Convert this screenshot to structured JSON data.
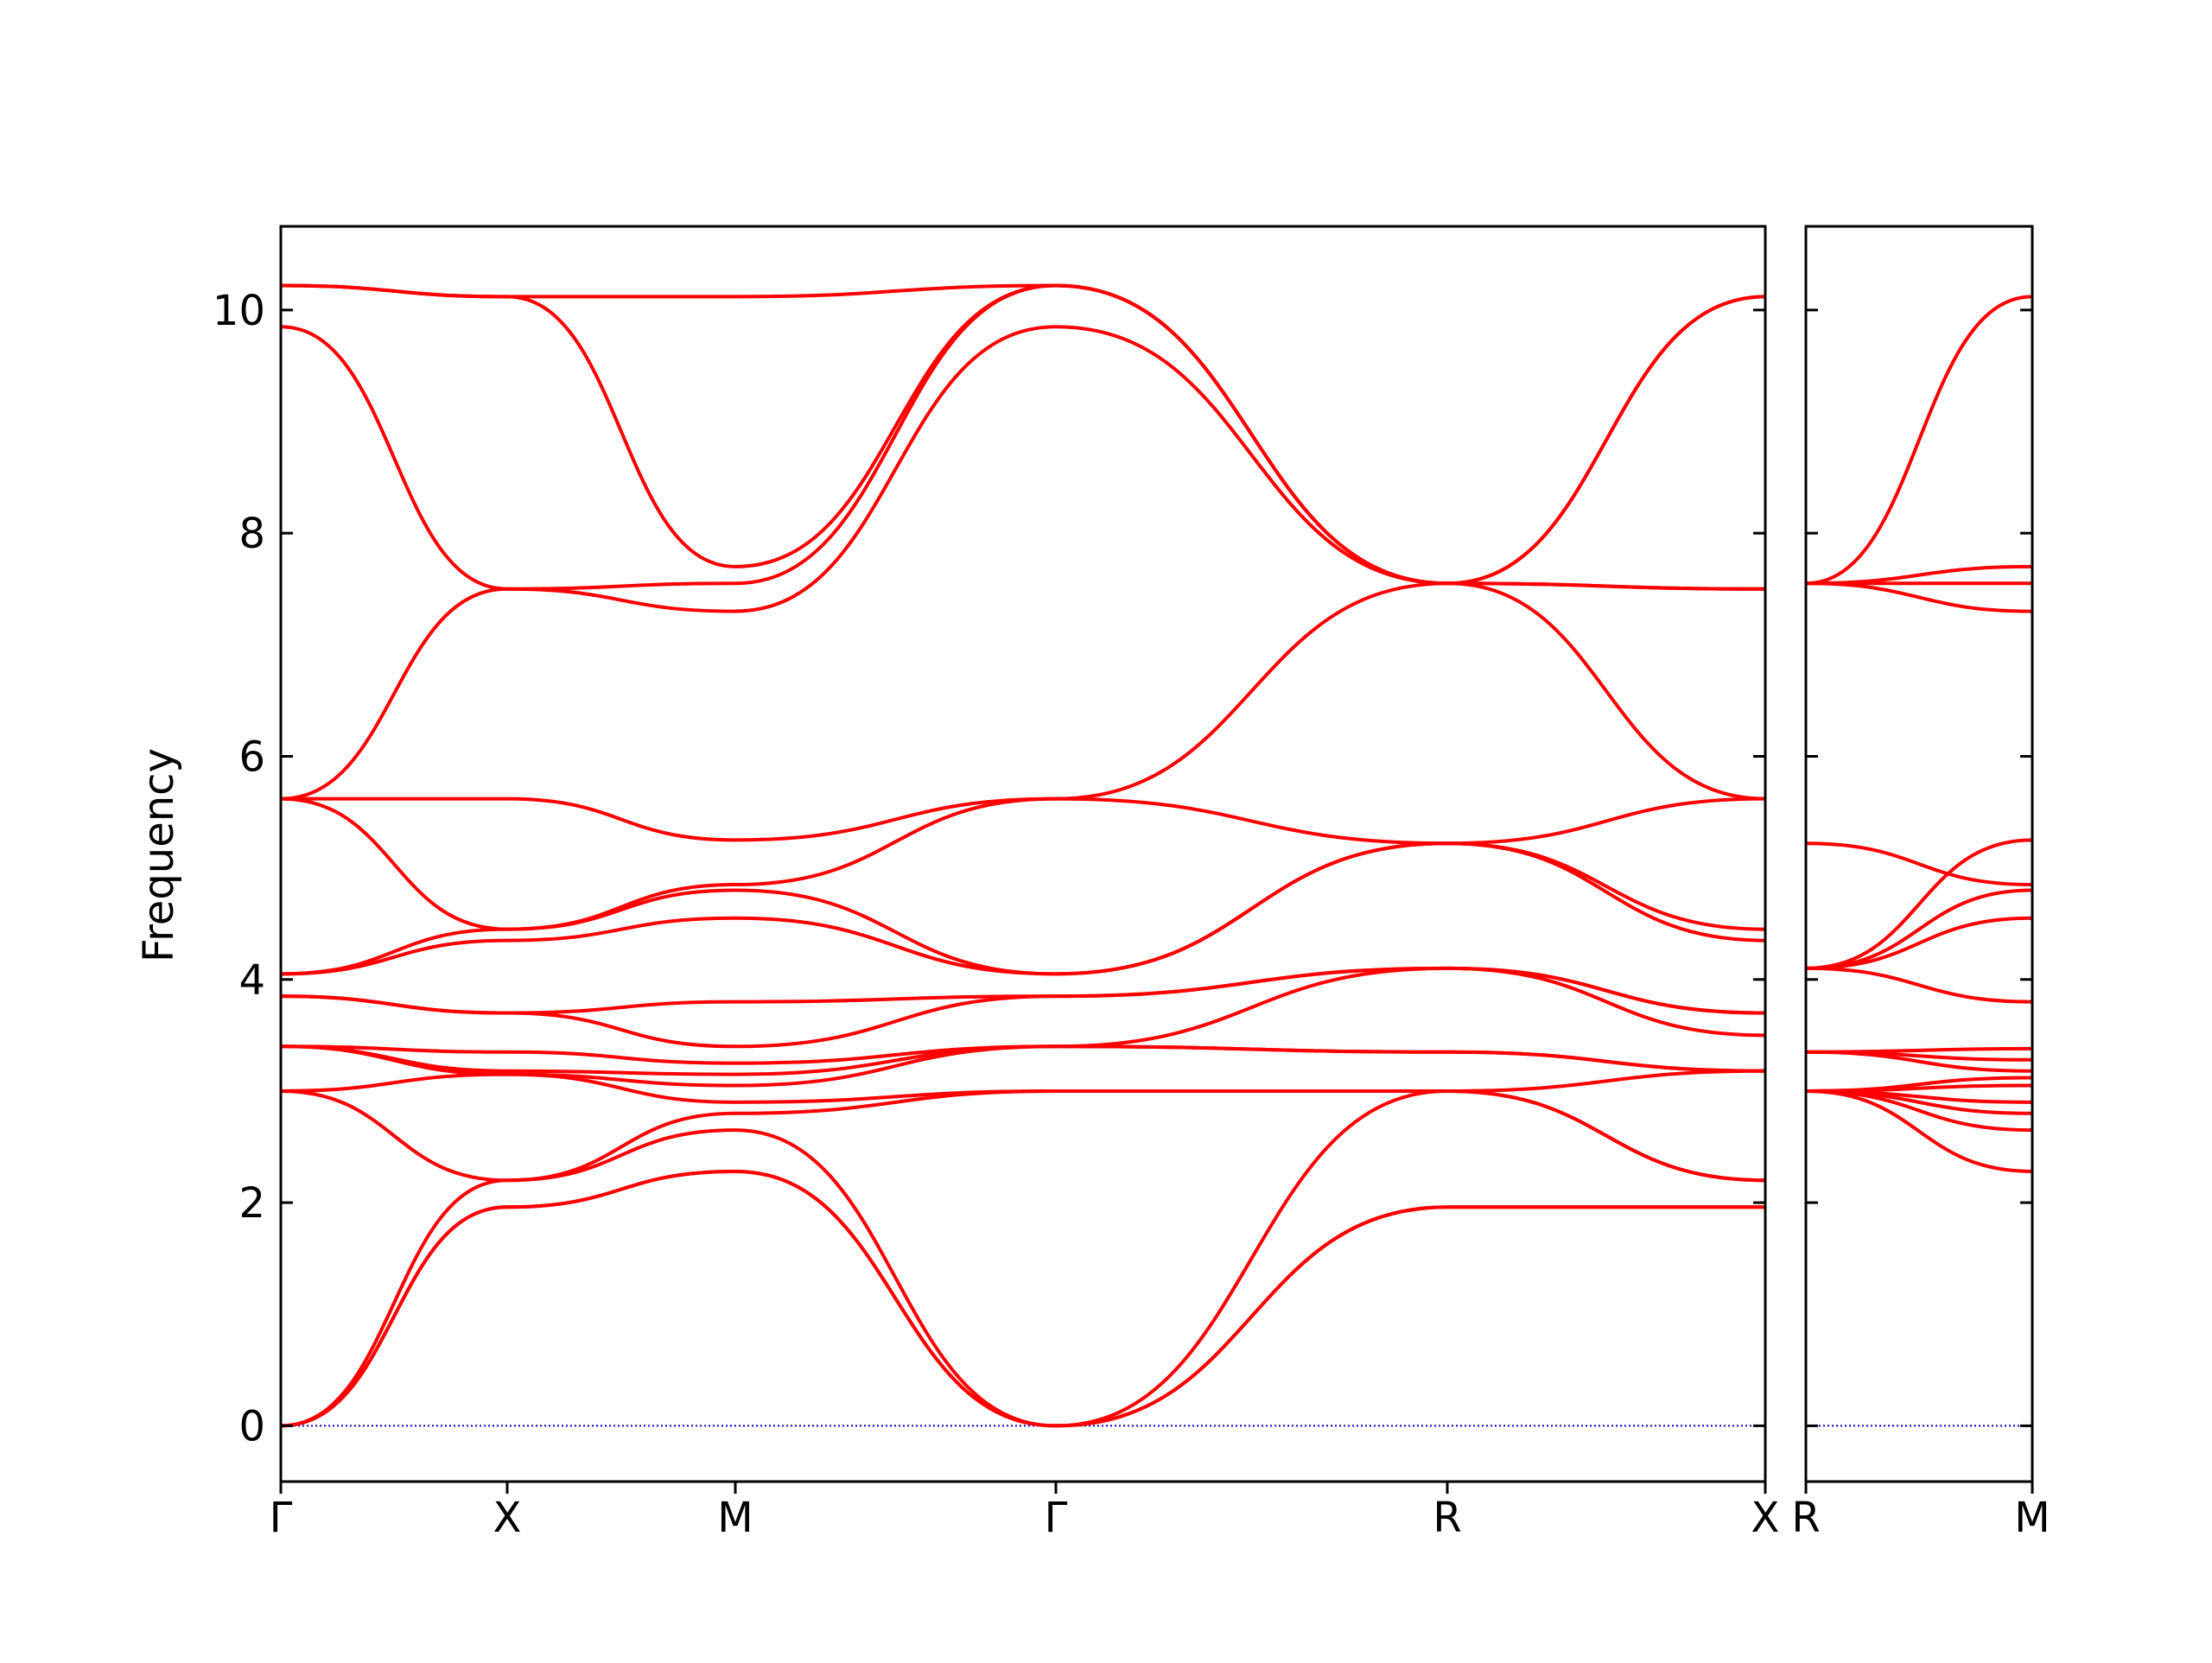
{
  "chart_data": {
    "type": "line",
    "ylabel": "Frequency",
    "ylim": [
      -0.5,
      10.75
    ],
    "yticks": [
      0,
      2,
      4,
      6,
      8,
      10
    ],
    "ytick_labels": [
      "0",
      "2",
      "4",
      "6",
      "8",
      "10"
    ],
    "grid": false,
    "legend": "none",
    "line_color": "#ff0000",
    "zero_line_color": "#0000cc",
    "panels": [
      {
        "id": "main",
        "xticks": [
          {
            "label": "Γ"
          },
          {
            "label": "X"
          },
          {
            "label": "M"
          },
          {
            "label": "Γ"
          },
          {
            "label": "R"
          },
          {
            "label": "X"
          }
        ],
        "bands": [
          {
            "points": [
              0,
              1.96,
              2.28,
              0,
              1.96,
              1.96
            ]
          },
          {
            "points": [
              0,
              1.96,
              2.28,
              0,
              1.96,
              1.96
            ]
          },
          {
            "points": [
              0,
              2.2,
              2.65,
              0,
              3.0,
              2.2
            ]
          },
          {
            "points": [
              3.0,
              2.2,
              2.8,
              3.0,
              3.0,
              2.2
            ]
          },
          {
            "points": [
              3.0,
              3.15,
              2.9,
              3.0,
              3.0,
              3.18
            ]
          },
          {
            "points": [
              3.4,
              3.15,
              3.05,
              3.4,
              3.35,
              3.18
            ]
          },
          {
            "points": [
              3.4,
              3.18,
              3.15,
              3.4,
              3.35,
              3.18
            ]
          },
          {
            "points": [
              3.4,
              3.35,
              3.25,
              3.4,
              4.1,
              3.5
            ]
          },
          {
            "points": [
              3.85,
              3.7,
              3.4,
              3.85,
              4.1,
              3.7
            ]
          },
          {
            "points": [
              3.85,
              3.7,
              3.8,
              3.85,
              4.1,
              3.7
            ]
          },
          {
            "points": [
              4.05,
              4.35,
              4.55,
              4.05,
              5.22,
              4.35
            ]
          },
          {
            "points": [
              4.05,
              4.45,
              4.8,
              4.05,
              5.22,
              4.45
            ]
          },
          {
            "points": [
              5.62,
              4.45,
              4.85,
              5.62,
              5.22,
              5.62
            ]
          },
          {
            "points": [
              5.62,
              5.62,
              5.25,
              5.62,
              7.55,
              5.62
            ]
          },
          {
            "points": [
              5.62,
              7.5,
              7.3,
              9.85,
              7.55,
              7.5
            ]
          },
          {
            "points": [
              9.85,
              7.5,
              7.55,
              10.22,
              7.55,
              7.5
            ]
          },
          {
            "points": [
              10.22,
              10.12,
              7.7,
              10.22,
              7.55,
              10.12
            ]
          },
          {
            "points": [
              10.22,
              10.12,
              10.12,
              10.22,
              7.55,
              10.12
            ]
          }
        ]
      },
      {
        "id": "right",
        "xticks": [
          {
            "label": "R"
          },
          {
            "label": "M"
          }
        ],
        "bands": [
          {
            "points": [
              3.0,
              2.28
            ]
          },
          {
            "points": [
              3.0,
              2.65
            ]
          },
          {
            "points": [
              3.0,
              2.8
            ]
          },
          {
            "points": [
              3.0,
              2.9
            ]
          },
          {
            "points": [
              3.0,
              3.05
            ]
          },
          {
            "points": [
              3.0,
              3.12
            ]
          },
          {
            "points": [
              3.35,
              3.18
            ]
          },
          {
            "points": [
              3.35,
              3.28
            ]
          },
          {
            "points": [
              3.35,
              3.38
            ]
          },
          {
            "points": [
              4.1,
              3.8
            ]
          },
          {
            "points": [
              4.1,
              4.55
            ]
          },
          {
            "points": [
              4.1,
              4.8
            ]
          },
          {
            "points": [
              5.22,
              4.85
            ]
          },
          {
            "points": [
              4.1,
              5.25
            ]
          },
          {
            "points": [
              7.55,
              7.3
            ]
          },
          {
            "points": [
              7.55,
              7.55
            ]
          },
          {
            "points": [
              7.55,
              7.7
            ]
          },
          {
            "points": [
              7.55,
              10.12
            ]
          }
        ]
      }
    ]
  }
}
